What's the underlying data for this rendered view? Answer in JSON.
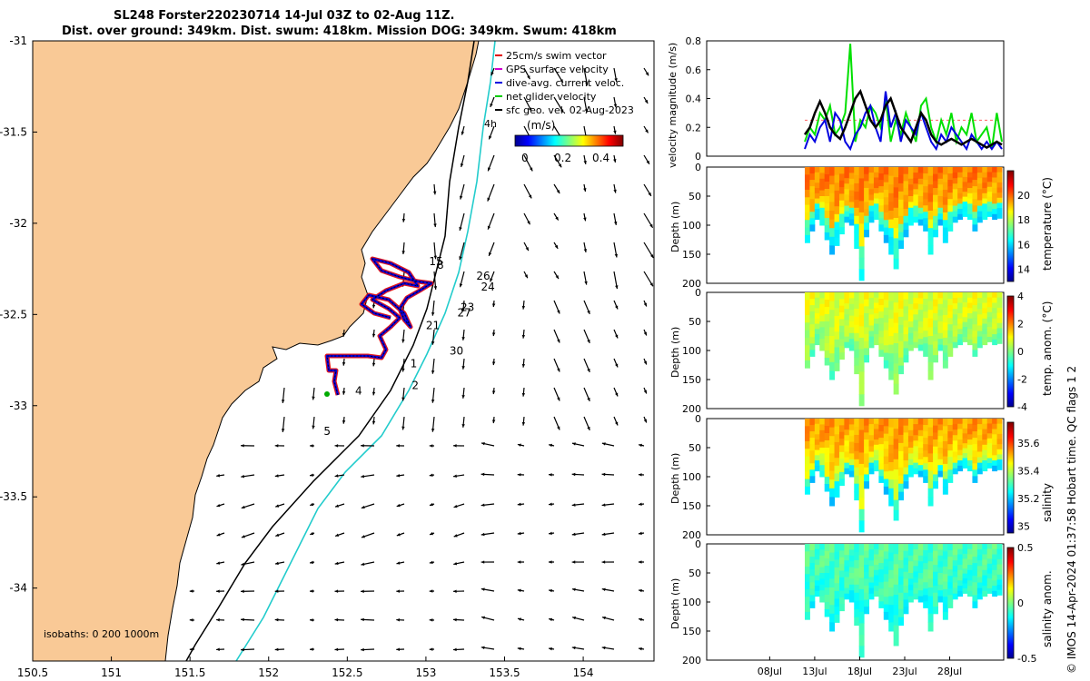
{
  "title_line1": "SL248 Forster220230714 14-Jul 03Z to 02-Aug 11Z.",
  "title_line2": "Dist. over ground: 349km. Dist. swum: 418km. Mission DOG: 349km. Swum: 418km",
  "chart_data": [
    {
      "type": "map",
      "name": "glider track and surface currents",
      "x_ticks": [
        "150.5",
        "151",
        "151.5",
        "152",
        "152.5",
        "153",
        "153.5",
        "154"
      ],
      "y_ticks": [
        "-31",
        "-31.5",
        "-32",
        "-32.5",
        "-33",
        "-33.5",
        "-34"
      ],
      "xlim": [
        150.5,
        154.45
      ],
      "ylim": [
        -34.4,
        -31.0
      ],
      "legend": [
        {
          "label": "25cm/s swim vector",
          "color": "#e00000"
        },
        {
          "label": "GPS surface velocity",
          "color": "#d000d0"
        },
        {
          "label": "dive-avg. current veloc.",
          "color": "#0000e0"
        },
        {
          "label": "net glider velocity",
          "color": "#00cc00"
        },
        {
          "label": "sfc geo. vel. 02-Aug-2023",
          "color": "#000000"
        }
      ],
      "legend_extra": "4h",
      "colorbar": {
        "label": "(m/s)",
        "ticks": [
          "0",
          "0.2",
          "0.4"
        ],
        "range": [
          0,
          0.5
        ]
      },
      "isobaths_label": "isobaths: 0   200  1000m",
      "day_labels": [
        {
          "text": "1",
          "lon": 152.9,
          "lat": -32.79
        },
        {
          "text": "2",
          "lon": 152.91,
          "lat": -32.91
        },
        {
          "text": "4",
          "lon": 152.55,
          "lat": -32.94
        },
        {
          "text": "5",
          "lon": 152.35,
          "lat": -33.16
        },
        {
          "text": "30",
          "lon": 153.15,
          "lat": -32.72
        },
        {
          "text": "21",
          "lon": 153.0,
          "lat": -32.58
        },
        {
          "text": "23",
          "lon": 153.22,
          "lat": -32.48
        },
        {
          "text": "27",
          "lon": 153.2,
          "lat": -32.51
        },
        {
          "text": "24",
          "lon": 153.35,
          "lat": -32.37
        },
        {
          "text": "26",
          "lon": 153.32,
          "lat": -32.31
        },
        {
          "text": "15",
          "lon": 153.02,
          "lat": -32.23
        },
        {
          "text": "8",
          "lon": 153.07,
          "lat": -32.25
        }
      ]
    },
    {
      "type": "line",
      "name": "velocity magnitude",
      "ylabel": "velocity magnitude (m/s)",
      "yticks": [
        "0",
        "0.2",
        "0.4",
        "0.6",
        "0.8"
      ],
      "ylim": [
        0,
        0.8
      ],
      "series": [
        {
          "name": "green",
          "color": "#00e000",
          "values": [
            0.1,
            0.2,
            0.15,
            0.3,
            0.25,
            0.35,
            0.15,
            0.2,
            0.3,
            0.78,
            0.1,
            0.25,
            0.2,
            0.35,
            0.3,
            0.2,
            0.4,
            0.1,
            0.25,
            0.15,
            0.3,
            0.2,
            0.1,
            0.35,
            0.4,
            0.2,
            0.1,
            0.25,
            0.15,
            0.3,
            0.1,
            0.2,
            0.15,
            0.3,
            0.1,
            0.15,
            0.2,
            0.05,
            0.3,
            0.1
          ]
        },
        {
          "name": "blue",
          "color": "#0000e0",
          "values": [
            0.05,
            0.15,
            0.1,
            0.2,
            0.25,
            0.1,
            0.3,
            0.25,
            0.1,
            0.05,
            0.15,
            0.2,
            0.3,
            0.35,
            0.2,
            0.1,
            0.45,
            0.2,
            0.3,
            0.1,
            0.25,
            0.2,
            0.15,
            0.3,
            0.2,
            0.1,
            0.05,
            0.15,
            0.1,
            0.2,
            0.15,
            0.1,
            0.05,
            0.15,
            0.1,
            0.05,
            0.1,
            0.05,
            0.1,
            0.05
          ]
        },
        {
          "name": "black",
          "color": "#000000",
          "values": [
            0.15,
            0.2,
            0.3,
            0.38,
            0.3,
            0.2,
            0.15,
            0.12,
            0.2,
            0.3,
            0.4,
            0.45,
            0.35,
            0.25,
            0.2,
            0.25,
            0.35,
            0.4,
            0.3,
            0.2,
            0.15,
            0.1,
            0.2,
            0.3,
            0.25,
            0.15,
            0.1,
            0.08,
            0.1,
            0.12,
            0.1,
            0.08,
            0.1,
            0.12,
            0.1,
            0.08,
            0.06,
            0.08,
            0.1,
            0.08
          ]
        }
      ]
    },
    {
      "type": "heatmap",
      "name": "temperature",
      "ylabel": "Depth (m)",
      "cbar_label": "temperature (°C)",
      "cbar_ticks": [
        "14",
        "16",
        "18",
        "20"
      ],
      "cbar_range": [
        13,
        22
      ],
      "yticks": [
        "0",
        "50",
        "100",
        "150",
        "200"
      ]
    },
    {
      "type": "heatmap",
      "name": "temperature anomaly",
      "ylabel": "Depth (m)",
      "cbar_label": "temp. anom. (°C)",
      "cbar_ticks": [
        "-4",
        "-2",
        "0",
        "2",
        "4"
      ],
      "cbar_range": [
        -4,
        4
      ],
      "yticks": [
        "0",
        "50",
        "100",
        "150",
        "200"
      ]
    },
    {
      "type": "heatmap",
      "name": "salinity",
      "ylabel": "Depth (m)",
      "cbar_label": "salinity",
      "cbar_ticks": [
        "35",
        "35.2",
        "35.4",
        "35.6"
      ],
      "cbar_range": [
        34.95,
        35.75
      ],
      "yticks": [
        "0",
        "50",
        "100",
        "150",
        "200"
      ]
    },
    {
      "type": "heatmap",
      "name": "salinity anomaly",
      "ylabel": "Depth (m)",
      "cbar_label": "salinity anom.",
      "cbar_ticks": [
        "-0.5",
        "0",
        "0.5"
      ],
      "cbar_range": [
        -0.5,
        0.5
      ],
      "yticks": [
        "0",
        "50",
        "100",
        "150",
        "200"
      ],
      "xticks": [
        "08Jul",
        "13Jul",
        "18Jul",
        "23Jul",
        "28Jul"
      ]
    }
  ],
  "footer": "© IMOS 14-Apr-2024 01:37:58 Hobart time. QC flags 1  2"
}
